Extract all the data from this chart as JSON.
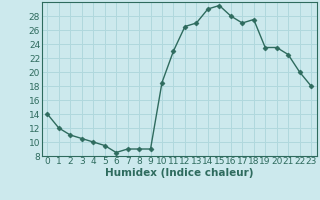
{
  "x": [
    0,
    1,
    2,
    3,
    4,
    5,
    6,
    7,
    8,
    9,
    10,
    11,
    12,
    13,
    14,
    15,
    16,
    17,
    18,
    19,
    20,
    21,
    22,
    23
  ],
  "y": [
    14,
    12,
    11,
    10.5,
    10,
    9.5,
    8.5,
    9,
    9,
    9,
    18.5,
    23,
    26.5,
    27,
    29,
    29.5,
    28,
    27,
    27.5,
    23.5,
    23.5,
    22.5,
    20,
    18
  ],
  "line_color": "#2e6b5e",
  "marker": "D",
  "marker_size": 2.5,
  "bg_color": "#cce9ed",
  "xlabel": "Humidex (Indice chaleur)",
  "xlim": [
    -0.5,
    23.5
  ],
  "ylim": [
    8,
    30
  ],
  "yticks": [
    8,
    10,
    12,
    14,
    16,
    18,
    20,
    22,
    24,
    26,
    28
  ],
  "xticks": [
    0,
    1,
    2,
    3,
    4,
    5,
    6,
    7,
    8,
    9,
    10,
    11,
    12,
    13,
    14,
    15,
    16,
    17,
    18,
    19,
    20,
    21,
    22,
    23
  ],
  "grid_color": "#b0d8dd",
  "xlabel_fontsize": 7.5,
  "tick_fontsize": 6.5,
  "line_width": 1.0
}
